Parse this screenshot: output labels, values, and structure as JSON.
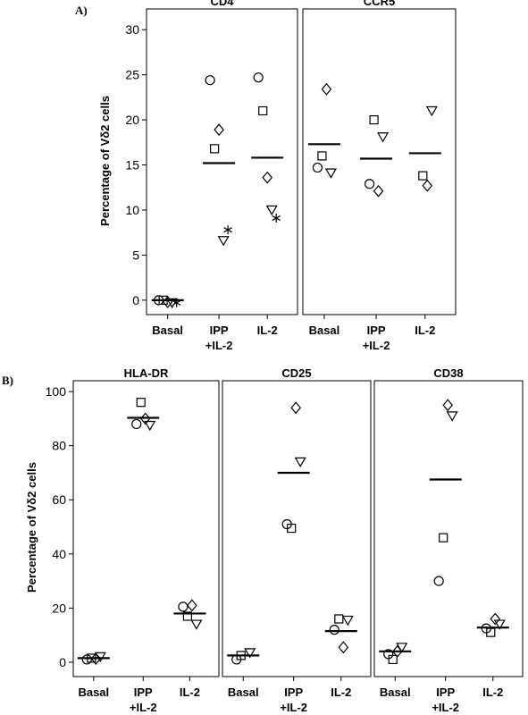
{
  "chart_data": [
    {
      "type": "scatter",
      "panel_label": "A)",
      "title": "CD4",
      "ylabel": "Percentage of  Vδ2 cells",
      "categories": [
        "Basal",
        "IPP +IL-2",
        "IL-2"
      ],
      "ylim": [
        -1.6,
        32.3
      ],
      "yticks": [
        0,
        5,
        10,
        15,
        20,
        25,
        30
      ],
      "series": [
        {
          "marker": "circle",
          "values": [
            0,
            24.4,
            24.7
          ]
        },
        {
          "marker": "square",
          "values": [
            0,
            16.8,
            21
          ]
        },
        {
          "marker": "diamond",
          "values": [
            -0.2,
            18.9,
            13.6
          ]
        },
        {
          "marker": "triangle",
          "values": [
            -0.3,
            6.6,
            10
          ]
        },
        {
          "marker": "star",
          "values": [
            -0.3,
            7.8,
            9.1
          ]
        }
      ],
      "means": [
        0,
        15.2,
        15.8
      ]
    },
    {
      "type": "scatter",
      "title": "CCR5",
      "categories": [
        "Basal",
        "IPP +IL-2",
        "IL-2"
      ],
      "ylim": [
        -1.6,
        32.3
      ],
      "series": [
        {
          "marker": "circle",
          "values": [
            14.7,
            12.9,
            null
          ]
        },
        {
          "marker": "square",
          "values": [
            16,
            20,
            13.8
          ]
        },
        {
          "marker": "diamond",
          "values": [
            23.4,
            12.1,
            12.7
          ]
        },
        {
          "marker": "triangle",
          "values": [
            14.1,
            18.1,
            21
          ]
        }
      ],
      "means": [
        17.3,
        15.7,
        16.3
      ]
    },
    {
      "type": "scatter",
      "panel_label": "B)",
      "title": "HLA-DR",
      "ylabel": "Percentage of  Vδ2 cells",
      "categories": [
        "Basal",
        "IPP +IL-2",
        "IL-2"
      ],
      "ylim": [
        -5.3,
        104
      ],
      "yticks": [
        0,
        20,
        40,
        60,
        80,
        100
      ],
      "series": [
        {
          "marker": "circle",
          "values": [
            1,
            88,
            20.5
          ]
        },
        {
          "marker": "square",
          "values": [
            1.5,
            96,
            17
          ]
        },
        {
          "marker": "diamond",
          "values": [
            1.3,
            90,
            21
          ]
        },
        {
          "marker": "triangle",
          "values": [
            2,
            87.5,
            14
          ]
        }
      ],
      "means": [
        1.5,
        90.3,
        18
      ]
    },
    {
      "type": "scatter",
      "title": "CD25",
      "categories": [
        "Basal",
        "IPP +IL-2",
        "IL-2"
      ],
      "ylim": [
        -5.3,
        104
      ],
      "series": [
        {
          "marker": "circle",
          "values": [
            1,
            51,
            12
          ]
        },
        {
          "marker": "square",
          "values": [
            2.5,
            49.5,
            16
          ]
        },
        {
          "marker": "diamond",
          "values": [
            null,
            94,
            5.5
          ]
        },
        {
          "marker": "triangle",
          "values": [
            3.5,
            74,
            15.5
          ]
        }
      ],
      "means": [
        2.5,
        70,
        11.5
      ]
    },
    {
      "type": "scatter",
      "title": "CD38",
      "categories": [
        "Basal",
        "IPP +IL-2",
        "IL-2"
      ],
      "ylim": [
        -5.3,
        104
      ],
      "series": [
        {
          "marker": "circle",
          "values": [
            3,
            30,
            12.5
          ]
        },
        {
          "marker": "square",
          "values": [
            1,
            46,
            11
          ]
        },
        {
          "marker": "diamond",
          "values": [
            4,
            95,
            16
          ]
        },
        {
          "marker": "triangle",
          "values": [
            5.5,
            91,
            14
          ]
        }
      ],
      "means": [
        4,
        67.5,
        12.8
      ]
    }
  ]
}
